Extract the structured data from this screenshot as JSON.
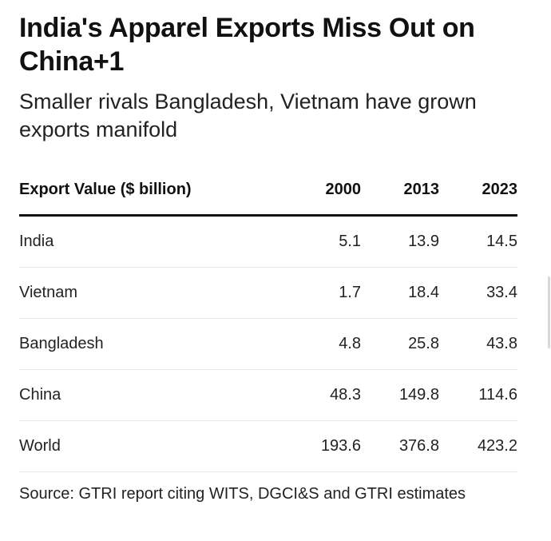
{
  "header": {
    "title": "India's Apparel Exports Miss Out on China+1",
    "subtitle": "Smaller rivals Bangladesh, Vietnam have grown exports manifold"
  },
  "chart_data": {
    "type": "table",
    "title": "India's Apparel Exports Miss Out on China+1",
    "subtitle": "Smaller rivals Bangladesh, Vietnam have grown exports manifold",
    "columns": [
      "Export Value ($ billion)",
      "2000",
      "2013",
      "2023"
    ],
    "rows": [
      {
        "label": "India",
        "values": [
          "5.1",
          "13.9",
          "14.5"
        ]
      },
      {
        "label": "Vietnam",
        "values": [
          "1.7",
          "18.4",
          "33.4"
        ]
      },
      {
        "label": "Bangladesh",
        "values": [
          "4.8",
          "25.8",
          "43.8"
        ]
      },
      {
        "label": "China",
        "values": [
          "48.3",
          "149.8",
          "114.6"
        ]
      },
      {
        "label": "World",
        "values": [
          "193.6",
          "376.8",
          "423.2"
        ]
      }
    ],
    "source": "Source: GTRI report citing WITS, DGCI&S and GTRI estimates"
  }
}
